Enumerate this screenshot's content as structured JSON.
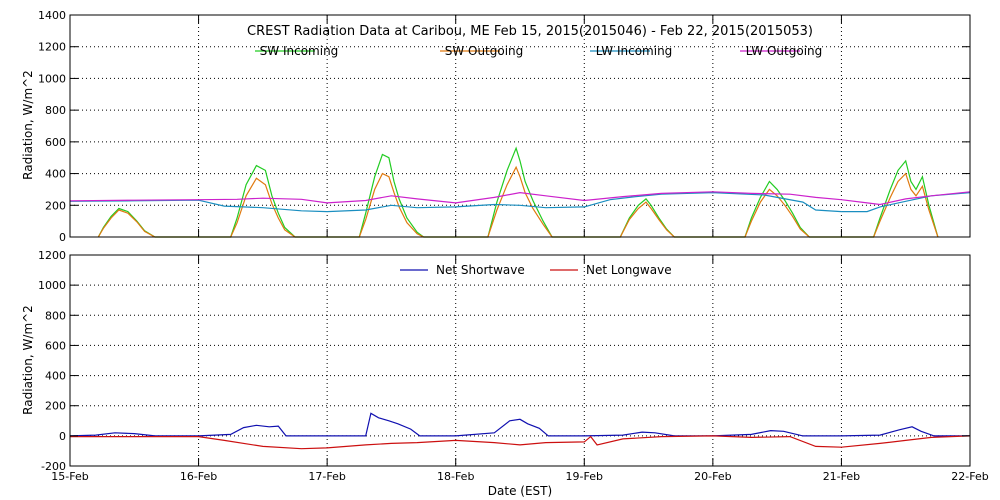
{
  "title": "CREST Radiation Data at Caribou, ME   Feb 15, 2015(2015046) - Feb 22, 2015(2015053)",
  "xlabel": "Date (EST)",
  "colors": {
    "sw_incoming": "#22cc22",
    "sw_outgoing": "#e07a10",
    "lw_incoming": "#1a8ec0",
    "lw_outgoing": "#cc22cc",
    "net_shortwave": "#1010b0",
    "net_longwave": "#cc1010",
    "grid": "#000000"
  },
  "chart_data": [
    {
      "type": "line",
      "ylabel": "Radiation, W/m^2",
      "ylim": [
        0,
        1400
      ],
      "xlim": [
        "15-Feb",
        "22-Feb"
      ],
      "yticks": [
        "0",
        "200",
        "400",
        "600",
        "800",
        "1000",
        "1200",
        "1400"
      ],
      "xticks": [
        "15-Feb",
        "16-Feb",
        "17-Feb",
        "18-Feb",
        "19-Feb",
        "20-Feb",
        "21-Feb",
        "22-Feb"
      ],
      "legend": [
        "SW Incoming",
        "SW Outgoing",
        "LW Incoming",
        "LW Outgoing"
      ],
      "grid": true,
      "note": "x = day offset from 15-Feb 00:00 EST",
      "series": [
        {
          "name": "SW Incoming",
          "x": [
            0.22,
            0.26,
            0.32,
            0.38,
            0.45,
            0.52,
            0.58,
            0.66,
            1.25,
            1.3,
            1.37,
            1.45,
            1.52,
            1.57,
            1.62,
            1.67,
            1.75,
            2.25,
            2.3,
            2.37,
            2.43,
            2.48,
            2.52,
            2.56,
            2.62,
            2.7,
            2.75,
            3.25,
            3.32,
            3.4,
            3.47,
            3.5,
            3.54,
            3.6,
            3.68,
            3.75,
            4.28,
            4.35,
            4.42,
            4.48,
            4.52,
            4.58,
            4.64,
            4.7,
            5.25,
            5.3,
            5.37,
            5.44,
            5.5,
            5.56,
            5.62,
            5.68,
            5.75,
            6.25,
            6.3,
            6.38,
            6.44,
            6.5,
            6.54,
            6.58,
            6.63,
            6.68,
            6.75
          ],
          "y": [
            0,
            60,
            130,
            180,
            160,
            100,
            40,
            0,
            0,
            120,
            330,
            450,
            420,
            260,
            150,
            60,
            0,
            0,
            150,
            380,
            520,
            500,
            350,
            240,
            120,
            30,
            0,
            0,
            220,
            420,
            560,
            480,
            350,
            230,
            100,
            0,
            0,
            120,
            200,
            240,
            200,
            120,
            50,
            0,
            0,
            120,
            250,
            350,
            300,
            230,
            150,
            60,
            0,
            0,
            120,
            300,
            420,
            480,
            350,
            300,
            380,
            200,
            0
          ]
        },
        {
          "name": "SW Outgoing",
          "x": [
            0.22,
            0.26,
            0.32,
            0.38,
            0.45,
            0.52,
            0.58,
            0.66,
            1.25,
            1.3,
            1.37,
            1.45,
            1.52,
            1.57,
            1.62,
            1.67,
            1.75,
            2.25,
            2.3,
            2.37,
            2.43,
            2.48,
            2.52,
            2.56,
            2.62,
            2.7,
            2.75,
            3.25,
            3.32,
            3.4,
            3.47,
            3.5,
            3.54,
            3.6,
            3.68,
            3.75,
            4.28,
            4.35,
            4.42,
            4.48,
            4.52,
            4.58,
            4.64,
            4.7,
            5.25,
            5.3,
            5.37,
            5.44,
            5.5,
            5.56,
            5.62,
            5.68,
            5.75,
            6.25,
            6.3,
            6.38,
            6.44,
            6.5,
            6.54,
            6.58,
            6.63,
            6.68,
            6.75
          ],
          "y": [
            0,
            55,
            120,
            170,
            150,
            95,
            35,
            0,
            0,
            90,
            260,
            370,
            330,
            210,
            120,
            45,
            0,
            0,
            110,
            300,
            400,
            380,
            280,
            190,
            90,
            20,
            0,
            0,
            170,
            330,
            440,
            380,
            280,
            180,
            80,
            0,
            0,
            110,
            180,
            220,
            180,
            110,
            45,
            0,
            0,
            100,
            220,
            300,
            260,
            200,
            130,
            50,
            0,
            0,
            100,
            250,
            350,
            400,
            300,
            260,
            320,
            170,
            0
          ]
        },
        {
          "name": "LW Incoming",
          "x": [
            0.0,
            0.5,
            1.0,
            1.2,
            1.5,
            1.8,
            2.0,
            2.3,
            2.5,
            2.7,
            3.0,
            3.3,
            3.5,
            3.7,
            4.0,
            4.2,
            4.4,
            4.6,
            5.0,
            5.4,
            5.7,
            5.8,
            6.0,
            6.2,
            6.3,
            6.5,
            6.7,
            7.0
          ],
          "y": [
            225,
            228,
            232,
            195,
            185,
            165,
            160,
            170,
            200,
            185,
            190,
            205,
            200,
            185,
            190,
            235,
            255,
            270,
            280,
            265,
            220,
            170,
            160,
            160,
            190,
            225,
            260,
            280
          ]
        },
        {
          "name": "LW Outgoing",
          "x": [
            0.0,
            0.5,
            1.0,
            1.3,
            1.5,
            1.8,
            2.0,
            2.3,
            2.5,
            2.7,
            3.0,
            3.3,
            3.5,
            3.7,
            4.0,
            4.3,
            4.6,
            5.0,
            5.3,
            5.6,
            5.8,
            6.0,
            6.2,
            6.3,
            6.5,
            6.7,
            7.0
          ],
          "y": [
            228,
            232,
            235,
            238,
            245,
            238,
            215,
            230,
            260,
            240,
            215,
            250,
            280,
            260,
            230,
            255,
            275,
            285,
            275,
            270,
            250,
            235,
            215,
            205,
            240,
            260,
            285
          ]
        }
      ]
    },
    {
      "type": "line",
      "ylabel": "Radiation, W/m^2",
      "ylim": [
        -200,
        1200
      ],
      "xlim": [
        "15-Feb",
        "22-Feb"
      ],
      "yticks": [
        "-200",
        "0",
        "200",
        "400",
        "600",
        "800",
        "1000",
        "1200"
      ],
      "xticks": [
        "15-Feb",
        "16-Feb",
        "17-Feb",
        "18-Feb",
        "19-Feb",
        "20-Feb",
        "21-Feb",
        "22-Feb"
      ],
      "legend": [
        "Net Shortwave",
        "Net Longwave"
      ],
      "grid": true,
      "series": [
        {
          "name": "Net Shortwave",
          "x": [
            0.0,
            0.2,
            0.35,
            0.5,
            0.66,
            1.0,
            1.25,
            1.35,
            1.45,
            1.55,
            1.62,
            1.68,
            2.0,
            2.3,
            2.34,
            2.4,
            2.48,
            2.55,
            2.65,
            2.72,
            3.0,
            3.3,
            3.42,
            3.5,
            3.56,
            3.65,
            3.72,
            4.0,
            4.3,
            4.45,
            4.55,
            4.7,
            5.0,
            5.3,
            5.45,
            5.55,
            5.7,
            6.0,
            6.3,
            6.45,
            6.55,
            6.62,
            6.72,
            7.0
          ],
          "y": [
            0,
            5,
            20,
            15,
            0,
            0,
            10,
            55,
            70,
            60,
            65,
            0,
            0,
            0,
            150,
            120,
            100,
            80,
            45,
            0,
            0,
            20,
            100,
            110,
            80,
            50,
            0,
            0,
            5,
            25,
            20,
            0,
            0,
            10,
            35,
            30,
            0,
            0,
            5,
            40,
            60,
            30,
            0,
            0
          ]
        },
        {
          "name": "Net Longwave",
          "x": [
            0.0,
            0.5,
            1.0,
            1.2,
            1.5,
            1.8,
            2.0,
            2.3,
            2.5,
            2.7,
            3.0,
            3.3,
            3.5,
            3.7,
            4.0,
            4.05,
            4.1,
            4.3,
            4.6,
            5.0,
            5.3,
            5.6,
            5.8,
            6.0,
            6.3,
            6.5,
            6.7,
            7.0
          ],
          "y": [
            -5,
            -5,
            -5,
            -30,
            -70,
            -85,
            -80,
            -60,
            -50,
            -45,
            -30,
            -45,
            -60,
            -45,
            -40,
            -5,
            -60,
            -20,
            -5,
            0,
            -10,
            -5,
            -70,
            -75,
            -50,
            -30,
            -10,
            0
          ]
        }
      ]
    }
  ]
}
